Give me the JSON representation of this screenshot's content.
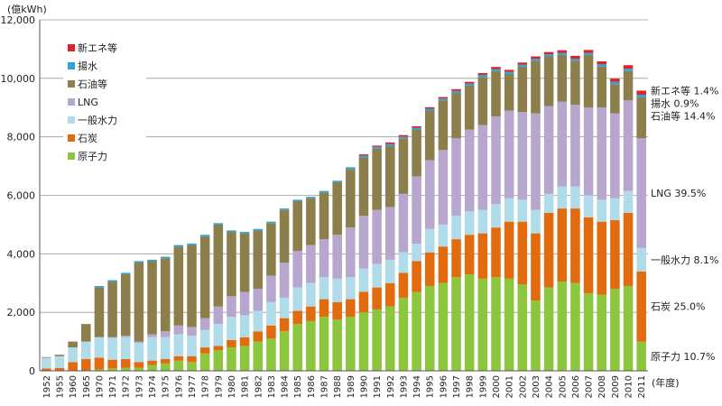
{
  "chart_data": {
    "type": "bar",
    "stacked": true,
    "y_unit": "(億kWh)",
    "x_unit": "(年度)",
    "ylim": [
      0,
      12000
    ],
    "yticks": [
      "0",
      "2,000",
      "4,000",
      "6,000",
      "8,000",
      "10,000",
      "12,000"
    ],
    "ytick_values": [
      0,
      2000,
      4000,
      6000,
      8000,
      10000,
      12000
    ],
    "categories": [
      "1952",
      "1955",
      "1960",
      "1965",
      "1970",
      "1971",
      "1972",
      "1973",
      "1974",
      "1975",
      "1976",
      "1977",
      "1978",
      "1979",
      "1980",
      "1981",
      "1982",
      "1983",
      "1984",
      "1985",
      "1986",
      "1987",
      "1988",
      "1989",
      "1990",
      "1991",
      "1992",
      "1993",
      "1994",
      "1995",
      "1996",
      "1997",
      "1998",
      "1999",
      "2000",
      "2001",
      "2002",
      "2003",
      "2004",
      "2005",
      "2006",
      "2007",
      "2008",
      "2009",
      "2010",
      "2011"
    ],
    "series": [
      {
        "name": "原子力",
        "color": "#8cc63f",
        "values": [
          0,
          0,
          0,
          0,
          50,
          80,
          100,
          100,
          200,
          250,
          350,
          300,
          600,
          700,
          800,
          850,
          1000,
          1100,
          1350,
          1600,
          1700,
          1850,
          1750,
          1850,
          2000,
          2100,
          2200,
          2500,
          2700,
          2900,
          3000,
          3200,
          3300,
          3150,
          3200,
          3150,
          2950,
          2400,
          2850,
          3050,
          3000,
          2650,
          2600,
          2800,
          2900,
          1000
        ]
      },
      {
        "name": "石炭",
        "color": "#e26b10",
        "values": [
          80,
          100,
          300,
          400,
          400,
          300,
          300,
          200,
          150,
          150,
          150,
          200,
          200,
          150,
          250,
          300,
          350,
          450,
          450,
          450,
          500,
          600,
          600,
          600,
          700,
          750,
          800,
          850,
          1050,
          1150,
          1250,
          1300,
          1350,
          1550,
          1700,
          1950,
          2150,
          2300,
          2550,
          2500,
          2550,
          2600,
          2500,
          2350,
          2500,
          2400
        ]
      },
      {
        "name": "一般水力",
        "color": "#b0dbe9",
        "values": [
          370,
          400,
          500,
          600,
          700,
          750,
          750,
          650,
          800,
          750,
          750,
          700,
          600,
          750,
          800,
          750,
          700,
          800,
          700,
          800,
          800,
          750,
          800,
          750,
          800,
          800,
          800,
          700,
          600,
          800,
          750,
          800,
          800,
          800,
          800,
          800,
          750,
          800,
          650,
          750,
          750,
          750,
          750,
          750,
          750,
          800
        ]
      },
      {
        "name": "LNG",
        "color": "#b7a6cd",
        "values": [
          0,
          0,
          0,
          0,
          0,
          20,
          50,
          50,
          100,
          200,
          300,
          300,
          400,
          600,
          700,
          800,
          750,
          900,
          1200,
          1250,
          1300,
          1300,
          1500,
          1700,
          1800,
          1850,
          1800,
          2000,
          2300,
          2350,
          2550,
          2650,
          2800,
          2900,
          3000,
          3000,
          3000,
          3300,
          3000,
          2900,
          2800,
          3000,
          3150,
          2900,
          3100,
          3750
        ]
      },
      {
        "name": "石油等",
        "color": "#8c7f4c",
        "values": [
          20,
          50,
          200,
          600,
          1700,
          1900,
          2100,
          2700,
          2500,
          2500,
          2700,
          2800,
          2800,
          2800,
          2200,
          2000,
          2000,
          1800,
          1800,
          1700,
          1600,
          1600,
          1800,
          2000,
          2000,
          2100,
          2100,
          1900,
          1600,
          1700,
          1700,
          1550,
          1500,
          1650,
          1550,
          1250,
          1550,
          1800,
          1700,
          1600,
          1500,
          1800,
          1400,
          1000,
          1000,
          1400
        ]
      },
      {
        "name": "揚水",
        "color": "#2ea3d6",
        "values": [
          0,
          0,
          0,
          0,
          50,
          50,
          50,
          50,
          50,
          50,
          50,
          50,
          50,
          50,
          50,
          50,
          50,
          50,
          50,
          50,
          50,
          50,
          50,
          60,
          60,
          60,
          60,
          60,
          60,
          60,
          60,
          70,
          70,
          70,
          70,
          70,
          70,
          70,
          70,
          70,
          70,
          70,
          80,
          80,
          80,
          90
        ]
      },
      {
        "name": "新エネ等",
        "color": "#e0202a",
        "values": [
          0,
          0,
          0,
          0,
          0,
          0,
          0,
          0,
          0,
          0,
          0,
          0,
          0,
          0,
          0,
          0,
          0,
          0,
          0,
          0,
          0,
          0,
          0,
          0,
          40,
          40,
          50,
          50,
          50,
          50,
          50,
          60,
          60,
          60,
          70,
          70,
          70,
          80,
          80,
          90,
          100,
          100,
          100,
          110,
          120,
          140
        ]
      }
    ],
    "legend": {
      "placement": "top-left",
      "order": [
        "新エネ等",
        "揚水",
        "石油等",
        "LNG",
        "一般水力",
        "石炭",
        "原子力"
      ]
    },
    "annotations": [
      {
        "series": "新エネ等",
        "text": "新エネ等 1.4%"
      },
      {
        "series": "揚水",
        "text": "揚水 0.9%"
      },
      {
        "series": "石油等",
        "text": "石油等 14.4%"
      },
      {
        "series": "LNG",
        "text": "LNG 39.5%"
      },
      {
        "series": "一般水力",
        "text": "一般水力 8.1%"
      },
      {
        "series": "石炭",
        "text": "石炭 25.0%"
      },
      {
        "series": "原子力",
        "text": "原子力 10.7%"
      }
    ]
  }
}
